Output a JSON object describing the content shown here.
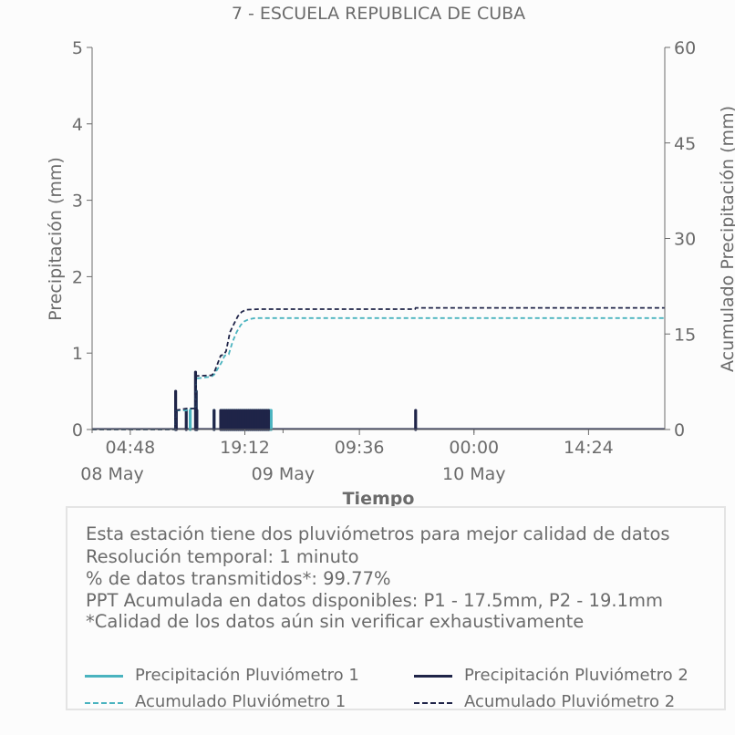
{
  "chart_data": {
    "type": "line",
    "title": "7 - ESCUELA REPUBLICA DE CUBA",
    "xlabel": "Tiempo",
    "ylabel": "Precipitación (mm)",
    "y2label": "Acumulado Precipitación (mm)",
    "xlim": [
      "2024-05-08 00:00",
      "2024-05-10 23:59"
    ],
    "ylim": [
      0,
      5
    ],
    "y2lim": [
      0,
      60
    ],
    "yticks": [
      0,
      1,
      2,
      3,
      4,
      5
    ],
    "y2ticks": [
      0,
      15,
      30,
      45,
      60
    ],
    "xticks": [
      {
        "t": "2024-05-08 04:48",
        "label": "04:48"
      },
      {
        "t": "2024-05-08 19:12",
        "label": "19:12"
      },
      {
        "t": "2024-05-09 09:36",
        "label": "09:36"
      },
      {
        "t": "2024-05-10 00:00",
        "label": "00:00"
      },
      {
        "t": "2024-05-10 14:24",
        "label": "14:24"
      }
    ],
    "date_labels": [
      {
        "t": "2024-05-08 00:00",
        "label": "08 May"
      },
      {
        "t": "2024-05-09 00:00",
        "label": "09 May"
      },
      {
        "t": "2024-05-10 00:00",
        "label": "10 May"
      }
    ],
    "series": [
      {
        "name": "Precipitación Pluviómetro 1",
        "axis": "left",
        "style": "bars",
        "color": "#4ab3bf",
        "points": [
          [
            "2024-05-08 10:30",
            0.25
          ],
          [
            "2024-05-08 12:20",
            0.25
          ],
          [
            "2024-05-08 13:05",
            0.5
          ],
          [
            "2024-05-08 13:10",
            0.25
          ],
          [
            "2024-05-08 15:20",
            0.25
          ],
          [
            "2024-05-08 16:20",
            0.25
          ],
          [
            "2024-05-08 16:35",
            0.25
          ],
          [
            "2024-05-08 16:50",
            0.25
          ],
          [
            "2024-05-08 17:05",
            0.25
          ],
          [
            "2024-05-08 17:20",
            0.25
          ],
          [
            "2024-05-08 17:35",
            0.25
          ],
          [
            "2024-05-08 17:50",
            0.25
          ],
          [
            "2024-05-08 18:05",
            0.25
          ],
          [
            "2024-05-08 18:20",
            0.25
          ],
          [
            "2024-05-08 18:35",
            0.25
          ],
          [
            "2024-05-08 18:50",
            0.25
          ],
          [
            "2024-05-08 19:05",
            0.25
          ],
          [
            "2024-05-08 19:20",
            0.25
          ],
          [
            "2024-05-08 19:35",
            0.25
          ],
          [
            "2024-05-08 19:50",
            0.25
          ],
          [
            "2024-05-08 20:05",
            0.25
          ],
          [
            "2024-05-08 20:20",
            0.25
          ],
          [
            "2024-05-08 20:35",
            0.25
          ],
          [
            "2024-05-08 20:50",
            0.25
          ],
          [
            "2024-05-08 21:05",
            0.25
          ],
          [
            "2024-05-08 21:20",
            0.25
          ],
          [
            "2024-05-08 21:35",
            0.25
          ],
          [
            "2024-05-08 21:50",
            0.25
          ],
          [
            "2024-05-08 22:05",
            0.25
          ],
          [
            "2024-05-08 22:20",
            0.25
          ],
          [
            "2024-05-08 22:30",
            0.25
          ]
        ]
      },
      {
        "name": "Precipitación Pluviómetro 2",
        "axis": "left",
        "style": "bars",
        "color": "#1f2448",
        "points": [
          [
            "2024-05-08 10:30",
            0.5
          ],
          [
            "2024-05-08 10:35",
            0.25
          ],
          [
            "2024-05-08 11:50",
            0.25
          ],
          [
            "2024-05-08 13:00",
            0.75
          ],
          [
            "2024-05-08 13:05",
            0.5
          ],
          [
            "2024-05-08 13:10",
            0.25
          ],
          [
            "2024-05-08 15:20",
            0.25
          ],
          [
            "2024-05-08 16:10",
            0.25
          ],
          [
            "2024-05-08 16:25",
            0.25
          ],
          [
            "2024-05-08 16:40",
            0.25
          ],
          [
            "2024-05-08 16:55",
            0.25
          ],
          [
            "2024-05-08 17:10",
            0.25
          ],
          [
            "2024-05-08 17:25",
            0.25
          ],
          [
            "2024-05-08 17:40",
            0.25
          ],
          [
            "2024-05-08 17:55",
            0.25
          ],
          [
            "2024-05-08 18:10",
            0.25
          ],
          [
            "2024-05-08 18:25",
            0.25
          ],
          [
            "2024-05-08 18:40",
            0.25
          ],
          [
            "2024-05-08 18:55",
            0.25
          ],
          [
            "2024-05-08 19:10",
            0.25
          ],
          [
            "2024-05-08 19:25",
            0.25
          ],
          [
            "2024-05-08 19:40",
            0.25
          ],
          [
            "2024-05-08 19:55",
            0.25
          ],
          [
            "2024-05-08 20:10",
            0.25
          ],
          [
            "2024-05-08 20:25",
            0.25
          ],
          [
            "2024-05-08 20:40",
            0.25
          ],
          [
            "2024-05-08 20:55",
            0.25
          ],
          [
            "2024-05-08 21:10",
            0.25
          ],
          [
            "2024-05-08 21:25",
            0.25
          ],
          [
            "2024-05-08 21:40",
            0.25
          ],
          [
            "2024-05-08 21:55",
            0.25
          ],
          [
            "2024-05-08 22:10",
            0.25
          ],
          [
            "2024-05-09 16:40",
            0.25
          ]
        ]
      },
      {
        "name": "Acumulado Pluviómetro 1",
        "axis": "right",
        "style": "dashed",
        "color": "#4ab3bf",
        "points": [
          [
            "2024-05-08 00:00",
            0
          ],
          [
            "2024-05-08 10:25",
            0
          ],
          [
            "2024-05-08 10:30",
            3.0
          ],
          [
            "2024-05-08 11:50",
            3.0
          ],
          [
            "2024-05-08 12:20",
            3.3
          ],
          [
            "2024-05-08 13:00",
            3.3
          ],
          [
            "2024-05-08 13:05",
            8.0
          ],
          [
            "2024-05-08 15:00",
            8.3
          ],
          [
            "2024-05-08 15:20",
            8.6
          ],
          [
            "2024-05-08 16:15",
            10.5
          ],
          [
            "2024-05-08 16:40",
            11.6
          ],
          [
            "2024-05-08 17:10",
            11.8
          ],
          [
            "2024-05-08 17:40",
            13.8
          ],
          [
            "2024-05-08 18:10",
            15.3
          ],
          [
            "2024-05-08 18:40",
            16.4
          ],
          [
            "2024-05-08 19:10",
            17.0
          ],
          [
            "2024-05-08 19:40",
            17.3
          ],
          [
            "2024-05-08 20:30",
            17.5
          ],
          [
            "2024-05-10 23:59",
            17.5
          ]
        ]
      },
      {
        "name": "Acumulado Pluviómetro 2",
        "axis": "right",
        "style": "dashed",
        "color": "#1f2448",
        "points": [
          [
            "2024-05-08 00:00",
            0
          ],
          [
            "2024-05-08 10:25",
            0
          ],
          [
            "2024-05-08 10:30",
            3.0
          ],
          [
            "2024-05-08 11:50",
            3.3
          ],
          [
            "2024-05-08 12:20",
            3.3
          ],
          [
            "2024-05-08 13:00",
            3.3
          ],
          [
            "2024-05-08 13:05",
            8.4
          ],
          [
            "2024-05-08 15:00",
            8.5
          ],
          [
            "2024-05-08 15:20",
            8.9
          ],
          [
            "2024-05-08 16:10",
            11.6
          ],
          [
            "2024-05-08 16:35",
            11.8
          ],
          [
            "2024-05-08 16:50",
            12.3
          ],
          [
            "2024-05-08 17:20",
            15.3
          ],
          [
            "2024-05-08 17:50",
            16.6
          ],
          [
            "2024-05-08 18:20",
            17.8
          ],
          [
            "2024-05-08 18:50",
            18.5
          ],
          [
            "2024-05-08 19:20",
            18.8
          ],
          [
            "2024-05-08 21:00",
            18.9
          ],
          [
            "2024-05-09 16:35",
            18.9
          ],
          [
            "2024-05-09 16:40",
            19.1
          ],
          [
            "2024-05-10 23:59",
            19.1
          ]
        ]
      }
    ],
    "legend": "bottom",
    "grid": false
  },
  "info_box": {
    "lines": [
      "Esta estación tiene dos pluviómetros para mejor calidad de datos",
      "Resolución temporal: 1 minuto",
      "% de datos transmitidos*: 99.77%",
      "PPT Acumulada en datos disponibles: P1 - 17.5mm, P2 - 19.1mm",
      "*Calidad de los datos aún sin verificar exhaustivamente"
    ]
  },
  "legend_items": [
    {
      "label": "Precipitación Pluviómetro 1",
      "color": "#4ab3bf",
      "style": "solid"
    },
    {
      "label": "Precipitación Pluviómetro 2",
      "color": "#1f2448",
      "style": "solid"
    },
    {
      "label": "Acumulado Pluviómetro 1",
      "color": "#4ab3bf",
      "style": "dashed"
    },
    {
      "label": "Acumulado Pluviómetro 2",
      "color": "#1f2448",
      "style": "dashed"
    }
  ],
  "colors": {
    "text": "#6b6b6b",
    "axis": "#6b6b6b",
    "border": "#e4e4e4"
  }
}
